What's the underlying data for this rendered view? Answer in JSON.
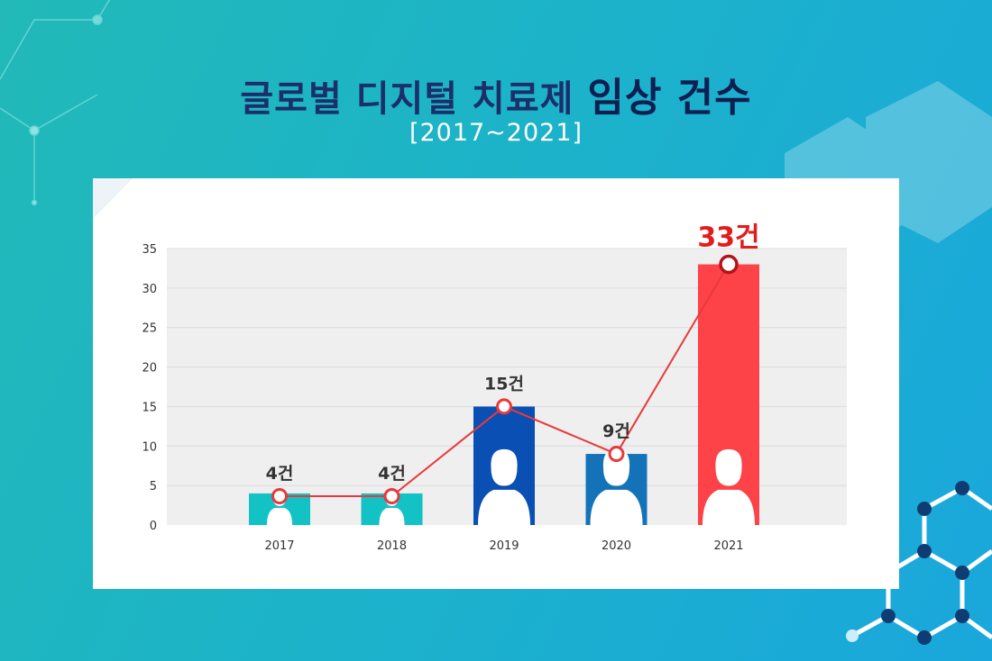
{
  "title": {
    "main": "글로벌 디지털 치료제",
    "accent": "임상 건수"
  },
  "subtitle": "[2017~2021]",
  "chart_data": {
    "type": "bar",
    "title": "글로벌 디지털 치료제 임상 건수",
    "subtitle": "[2017~2021]",
    "categories": [
      "2017",
      "2018",
      "2019",
      "2020",
      "2021"
    ],
    "values": [
      4,
      4,
      15,
      9,
      33
    ],
    "value_labels": [
      "4건",
      "4건",
      "15건",
      "9건",
      "33건"
    ],
    "ylim": [
      0,
      35
    ],
    "yticks": [
      0,
      5,
      10,
      15,
      20,
      25,
      30,
      35
    ],
    "grid": true,
    "line_overlay": true,
    "bar_colors": [
      "#13c2c4",
      "#13c2c4",
      "#0a4fb3",
      "#1473b8",
      "#fd4248"
    ],
    "line_color": "#e8393c",
    "highlight_label_color": "#e21d1d",
    "icon": "person-icon"
  }
}
